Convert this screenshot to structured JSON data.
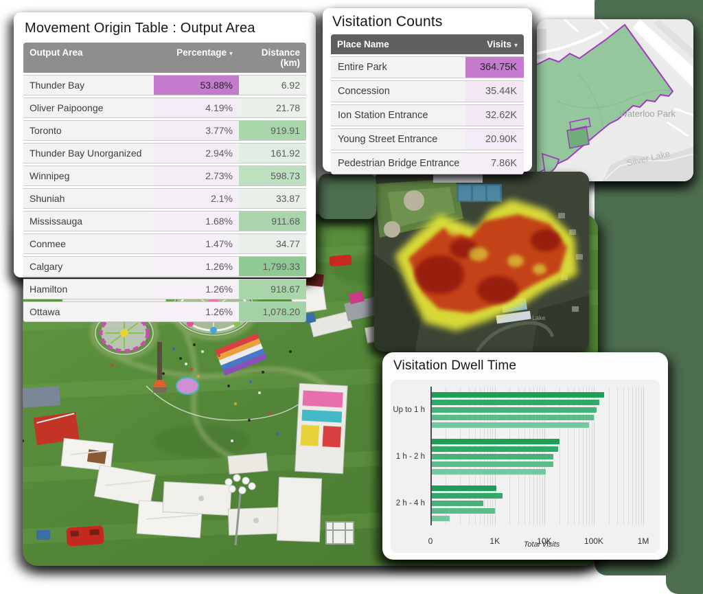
{
  "movement_table": {
    "title": "Movement Origin Table : Output Area",
    "columns": [
      "Output Area",
      "Percentage",
      "Distance (km)"
    ],
    "sort_column": "Percentage",
    "sort_arrow": "▾",
    "rows": [
      {
        "area": "Thunder Bay",
        "pct": "53.88%",
        "dist": "6.92",
        "pct_bg": "#c47acd",
        "dist_bg": "#ecf1ec"
      },
      {
        "area": "Oliver Paipoonge",
        "pct": "4.19%",
        "dist": "21.78",
        "pct_bg": "#f3ebf5",
        "dist_bg": "#eaf0ea"
      },
      {
        "area": "Toronto",
        "pct": "3.77%",
        "dist": "919.91",
        "pct_bg": "#f3ecf5",
        "dist_bg": "#a9d5ab"
      },
      {
        "area": "Thunder Bay Unorganized",
        "pct": "2.94%",
        "dist": "161.92",
        "pct_bg": "#f4edf6",
        "dist_bg": "#e0eee1"
      },
      {
        "area": "Winnipeg",
        "pct": "2.73%",
        "dist": "598.73",
        "pct_bg": "#f4edf6",
        "dist_bg": "#bfdfc1"
      },
      {
        "area": "Shuniah",
        "pct": "2.1%",
        "dist": "33.87",
        "pct_bg": "#f5eef6",
        "dist_bg": "#e9f0e9"
      },
      {
        "area": "Mississauga",
        "pct": "1.68%",
        "dist": "911.68",
        "pct_bg": "#f5eff7",
        "dist_bg": "#aad5ac"
      },
      {
        "area": "Conmee",
        "pct": "1.47%",
        "dist": "34.77",
        "pct_bg": "#f5eff7",
        "dist_bg": "#e9f0e9"
      },
      {
        "area": "Calgary",
        "pct": "1.26%",
        "dist": "1,799.33",
        "pct_bg": "#f6f0f7",
        "dist_bg": "#8fc994"
      },
      {
        "area": "Hamilton",
        "pct": "1.26%",
        "dist": "918.67",
        "pct_bg": "#f6f0f7",
        "dist_bg": "#a9d5ab"
      },
      {
        "area": "Ottawa",
        "pct": "1.26%",
        "dist": "1,078.20",
        "pct_bg": "#f6f0f7",
        "dist_bg": "#a2d2a6"
      }
    ]
  },
  "visitation_counts": {
    "title": "Visitation Counts",
    "columns": [
      "Place Name",
      "Visits"
    ],
    "sort_column": "Visits",
    "sort_arrow": "▾",
    "rows": [
      {
        "name": "Entire Park",
        "visits": "364.75K",
        "visits_bg": "#c47acd"
      },
      {
        "name": "Concession",
        "visits": "35.44K",
        "visits_bg": "#f2e8f4"
      },
      {
        "name": "Ion Station Entrance",
        "visits": "32.62K",
        "visits_bg": "#f2e9f4"
      },
      {
        "name": "Young Street Entrance",
        "visits": "20.90K",
        "visits_bg": "#f3ebf5"
      },
      {
        "name": "Pedestrian Bridge Entrance",
        "visits": "7.86K",
        "visits_bg": "#f5eef6"
      }
    ]
  },
  "chart_data": {
    "type": "bar",
    "orientation": "horizontal",
    "title": "Visitation Dwell Time",
    "xlabel": "Total Visits",
    "x_scale": "log",
    "x_ticks": [
      {
        "label": "0",
        "value": 50
      },
      {
        "label": "1K",
        "value": 1000
      },
      {
        "label": "10K",
        "value": 10000
      },
      {
        "label": "100K",
        "value": 100000
      },
      {
        "label": "1M",
        "value": 1000000
      }
    ],
    "x_range_log": [
      50,
      1000000
    ],
    "grid": true,
    "minor_grid_values": [
      100,
      200,
      300,
      400,
      500,
      600,
      700,
      800,
      900,
      2000,
      3000,
      4000,
      5000,
      6000,
      7000,
      8000,
      9000,
      20000,
      30000,
      40000,
      50000,
      60000,
      70000,
      80000,
      90000,
      200000,
      300000,
      400000,
      500000,
      600000,
      700000,
      800000,
      900000
    ],
    "bar_colors": [
      "#1f9e57",
      "#30a867",
      "#47b179",
      "#5bbb8a",
      "#74c89d"
    ],
    "groups": [
      {
        "label": "Up to 1 h",
        "values": [
          150000,
          120000,
          108000,
          95000,
          76000
        ]
      },
      {
        "label": "1 h - 2 h",
        "values": [
          19000,
          18000,
          14500,
          14300,
          10000
        ]
      },
      {
        "label": "2 h - 4 h",
        "values": [
          1000,
          1350,
          550,
          950,
          115
        ]
      }
    ]
  },
  "map": {
    "labels": {
      "park": "Waterloo Park",
      "lake": "Silver Lake"
    },
    "park_fill": "#94c79c",
    "park_stroke": "#a238c0"
  },
  "heatmap": {
    "label": "Lake",
    "colors": {
      "low": "#e8e838",
      "mid": "#c23b17",
      "high": "#8e1608"
    }
  },
  "backdrop_color": "#4e6e50"
}
